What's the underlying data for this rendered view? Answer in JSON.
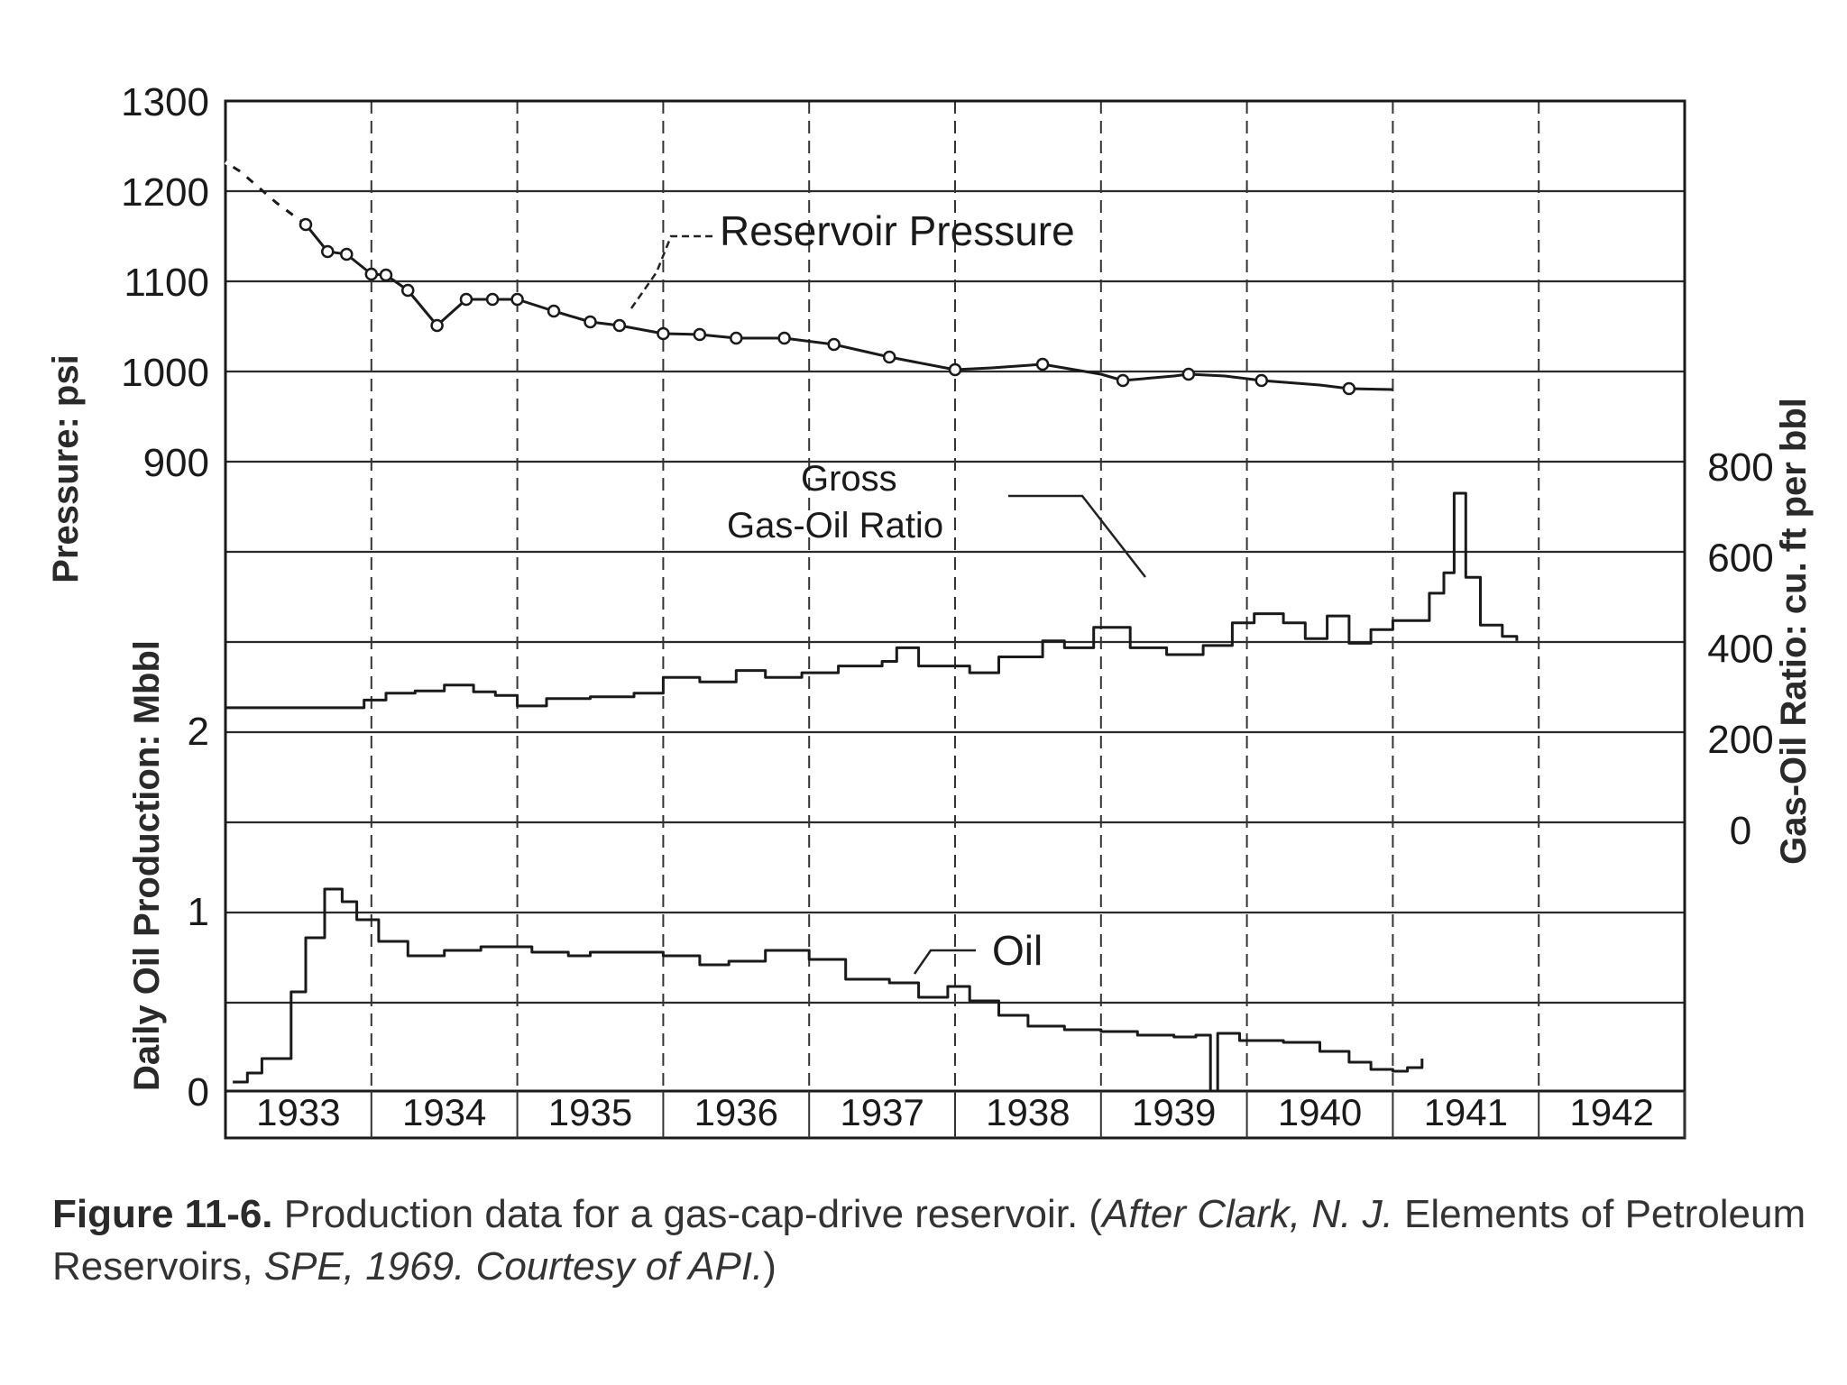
{
  "chart_data": {
    "type": "line",
    "y_axis_left_upper": {
      "label": "Pressure: psi",
      "ticks": [
        "1300",
        "1200",
        "1100",
        "1000",
        "900"
      ],
      "ylim": [
        900,
        1300
      ]
    },
    "y_axis_left_lower": {
      "label": "Daily Oil Production: Mbbl",
      "ticks": [
        "2",
        "1",
        "0"
      ],
      "ylim": [
        0,
        2
      ]
    },
    "y_axis_right": {
      "label": "Gas-Oil Ratio: cu. ft per bbl",
      "ticks": [
        "800",
        "600",
        "400",
        "200",
        "0"
      ],
      "ylim": [
        0,
        800
      ]
    },
    "x_axis": {
      "categories": [
        "1933",
        "1934",
        "1935",
        "1936",
        "1937",
        "1938",
        "1939",
        "1940",
        "1941",
        "1942"
      ],
      "xlim": [
        1932.5,
        1942.5
      ]
    },
    "annotations": {
      "pressure": "Reservoir Pressure",
      "gor_line1": "Gross",
      "gor_line2": "Gas-Oil Ratio",
      "oil": "Oil"
    },
    "series": [
      {
        "name": "Reservoir Pressure",
        "axis": "pressure",
        "points": [
          [
            1932.5,
            1232
          ],
          [
            1932.6,
            1222
          ],
          [
            1932.7,
            1208
          ],
          [
            1932.85,
            1187
          ],
          [
            1933.05,
            1163
          ],
          [
            1933.2,
            1133
          ],
          [
            1933.33,
            1130
          ],
          [
            1933.5,
            1108
          ],
          [
            1933.6,
            1107
          ],
          [
            1933.75,
            1090
          ],
          [
            1933.95,
            1051
          ],
          [
            1934.15,
            1080
          ],
          [
            1934.33,
            1080
          ],
          [
            1934.5,
            1080
          ],
          [
            1934.75,
            1067
          ],
          [
            1935.0,
            1055
          ],
          [
            1935.2,
            1051
          ],
          [
            1935.5,
            1042
          ],
          [
            1935.75,
            1041
          ],
          [
            1936.0,
            1037
          ],
          [
            1936.33,
            1037
          ],
          [
            1936.67,
            1030
          ],
          [
            1937.05,
            1016
          ],
          [
            1937.5,
            1002
          ],
          [
            1937.75,
            1004
          ],
          [
            1938.1,
            1008
          ],
          [
            1938.5,
            997
          ],
          [
            1938.65,
            990
          ],
          [
            1939.0,
            995
          ],
          [
            1939.1,
            997
          ],
          [
            1939.35,
            995
          ],
          [
            1939.6,
            990
          ],
          [
            1940.0,
            985
          ],
          [
            1940.2,
            981
          ],
          [
            1940.5,
            980
          ]
        ]
      },
      {
        "name": "Gross Gas-Oil Ratio",
        "axis": "gor",
        "points": [
          [
            1932.5,
            268
          ],
          [
            1933.3,
            268
          ],
          [
            1933.45,
            285
          ],
          [
            1933.6,
            300
          ],
          [
            1933.8,
            305
          ],
          [
            1934.0,
            318
          ],
          [
            1934.2,
            303
          ],
          [
            1934.35,
            295
          ],
          [
            1934.5,
            272
          ],
          [
            1934.7,
            288
          ],
          [
            1935.0,
            292
          ],
          [
            1935.3,
            300
          ],
          [
            1935.5,
            335
          ],
          [
            1935.75,
            325
          ],
          [
            1936.0,
            350
          ],
          [
            1936.2,
            335
          ],
          [
            1936.45,
            345
          ],
          [
            1936.7,
            360
          ],
          [
            1937.0,
            370
          ],
          [
            1937.1,
            400
          ],
          [
            1937.25,
            360
          ],
          [
            1937.6,
            345
          ],
          [
            1937.8,
            380
          ],
          [
            1938.1,
            415
          ],
          [
            1938.25,
            400
          ],
          [
            1938.45,
            445
          ],
          [
            1938.7,
            400
          ],
          [
            1938.95,
            385
          ],
          [
            1939.2,
            405
          ],
          [
            1939.4,
            455
          ],
          [
            1939.55,
            475
          ],
          [
            1939.75,
            455
          ],
          [
            1939.9,
            420
          ],
          [
            1940.05,
            470
          ],
          [
            1940.2,
            410
          ],
          [
            1940.35,
            440
          ],
          [
            1940.5,
            460
          ],
          [
            1940.75,
            520
          ],
          [
            1940.85,
            565
          ],
          [
            1940.92,
            740
          ],
          [
            1941.0,
            555
          ],
          [
            1941.1,
            450
          ],
          [
            1941.25,
            425
          ],
          [
            1941.35,
            415
          ]
        ]
      },
      {
        "name": "Oil",
        "axis": "oil",
        "points": [
          [
            1932.55,
            0.05
          ],
          [
            1932.65,
            0.1
          ],
          [
            1932.75,
            0.18
          ],
          [
            1932.95,
            0.55
          ],
          [
            1933.05,
            0.85
          ],
          [
            1933.18,
            1.12
          ],
          [
            1933.3,
            1.05
          ],
          [
            1933.4,
            0.95
          ],
          [
            1933.55,
            0.83
          ],
          [
            1933.75,
            0.75
          ],
          [
            1934.0,
            0.78
          ],
          [
            1934.25,
            0.8
          ],
          [
            1934.6,
            0.77
          ],
          [
            1934.85,
            0.75
          ],
          [
            1935.0,
            0.77
          ],
          [
            1935.5,
            0.75
          ],
          [
            1935.75,
            0.7
          ],
          [
            1935.95,
            0.72
          ],
          [
            1936.2,
            0.78
          ],
          [
            1936.5,
            0.73
          ],
          [
            1936.75,
            0.62
          ],
          [
            1937.05,
            0.6
          ],
          [
            1937.25,
            0.52
          ],
          [
            1937.45,
            0.58
          ],
          [
            1937.6,
            0.5
          ],
          [
            1937.8,
            0.42
          ],
          [
            1938.0,
            0.36
          ],
          [
            1938.25,
            0.34
          ],
          [
            1938.5,
            0.33
          ],
          [
            1938.75,
            0.31
          ],
          [
            1939.0,
            0.3
          ],
          [
            1939.15,
            0.31
          ],
          [
            1939.25,
            0.0
          ],
          [
            1939.3,
            0.32
          ],
          [
            1939.45,
            0.28
          ],
          [
            1939.75,
            0.27
          ],
          [
            1940.0,
            0.22
          ],
          [
            1940.2,
            0.16
          ],
          [
            1940.35,
            0.12
          ],
          [
            1940.5,
            0.11
          ],
          [
            1940.6,
            0.13
          ],
          [
            1940.7,
            0.18
          ]
        ]
      }
    ],
    "pressure_markers": [
      [
        1933.05,
        1163
      ],
      [
        1933.2,
        1133
      ],
      [
        1933.33,
        1130
      ],
      [
        1933.5,
        1108
      ],
      [
        1933.6,
        1107
      ],
      [
        1933.75,
        1090
      ],
      [
        1933.95,
        1051
      ],
      [
        1934.15,
        1080
      ],
      [
        1934.33,
        1080
      ],
      [
        1934.5,
        1080
      ],
      [
        1934.75,
        1067
      ],
      [
        1935.0,
        1055
      ],
      [
        1935.2,
        1051
      ],
      [
        1935.5,
        1042
      ],
      [
        1935.75,
        1041
      ],
      [
        1936.0,
        1037
      ],
      [
        1936.33,
        1037
      ],
      [
        1936.67,
        1030
      ],
      [
        1937.05,
        1016
      ],
      [
        1937.5,
        1002
      ],
      [
        1938.1,
        1008
      ],
      [
        1938.65,
        990
      ],
      [
        1939.1,
        997
      ],
      [
        1939.6,
        990
      ],
      [
        1940.2,
        981
      ]
    ]
  },
  "caption": {
    "label": "Figure 11-6.",
    "text": " Production data for a gas-cap-drive reservoir. (",
    "italic1": "After Clark, N. J.",
    "text2": " Elements of Petroleum Reservoirs, ",
    "italic2": "SPE, 1969. Courtesy of API.",
    "text3": ")"
  }
}
